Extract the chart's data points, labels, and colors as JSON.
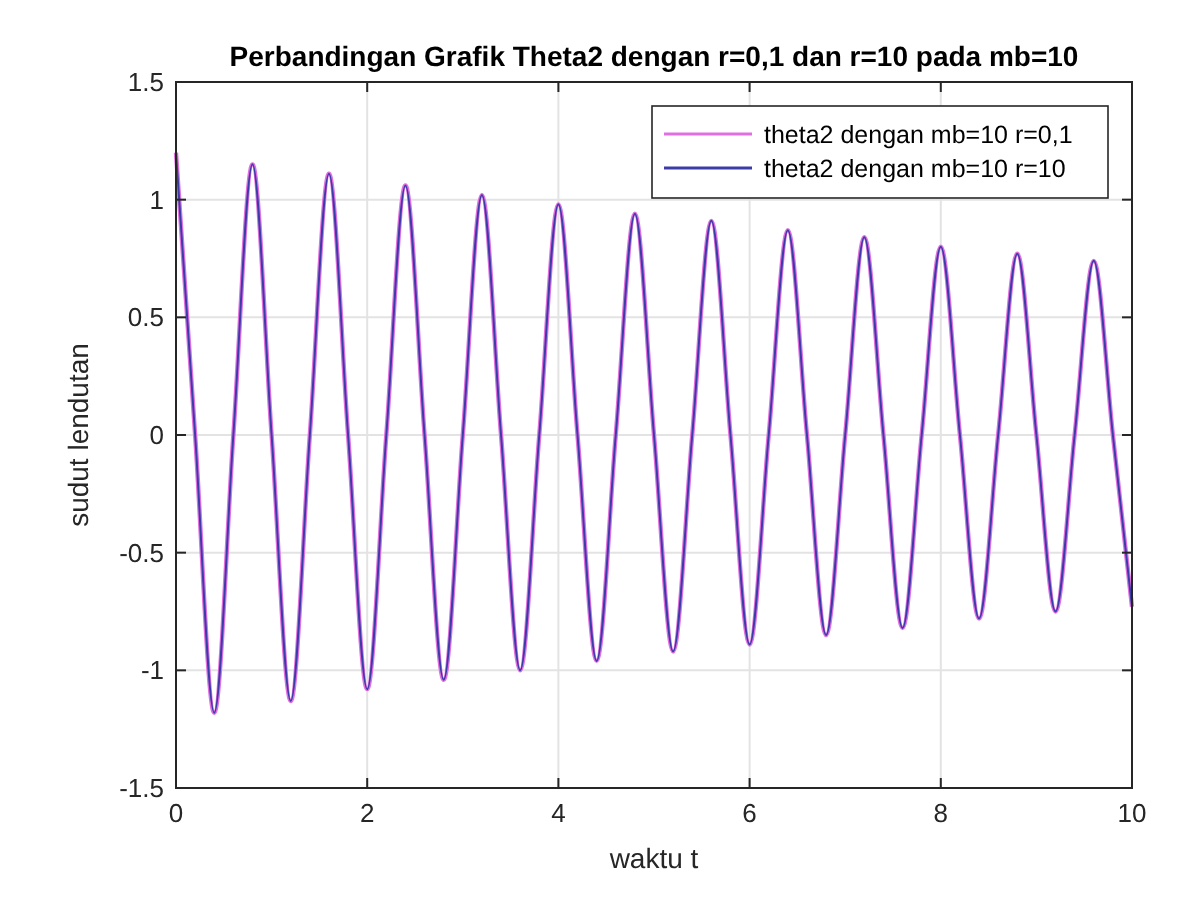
{
  "chart_data": {
    "type": "line",
    "title": "Perbandingan Grafik Theta2 dengan r=0,1 dan r=10 pada mb=10",
    "xlabel": "waktu t",
    "ylabel": "sudut lendutan",
    "x": [
      0,
      0.2,
      0.4,
      0.6,
      0.8,
      1,
      1.2,
      1.4,
      1.6,
      1.8,
      2,
      2.2,
      2.4,
      2.6,
      2.8,
      3,
      3.2,
      3.4,
      3.6,
      3.8,
      4,
      4.2,
      4.4,
      4.6,
      4.8,
      5,
      5.2,
      5.4,
      5.6,
      5.8,
      6,
      6.2,
      6.4,
      6.6,
      6.8,
      7,
      7.2,
      7.4,
      7.6,
      7.8,
      8,
      8.2,
      8.4,
      8.6,
      8.8,
      9,
      9.2,
      9.4,
      9.6,
      9.8,
      10
    ],
    "series": [
      {
        "name": "theta2 dengan mb=10 r=0,1",
        "color": "#e070e0",
        "values": [
          1.2,
          0,
          -1.18,
          0,
          1.15,
          0,
          -1.13,
          0,
          1.11,
          0,
          -1.08,
          0,
          1.06,
          0,
          -1.04,
          0,
          1.02,
          0,
          -1.0,
          0,
          0.98,
          0,
          -0.96,
          0,
          0.94,
          0,
          -0.92,
          0,
          0.91,
          0,
          -0.89,
          0,
          0.87,
          0,
          -0.85,
          0,
          0.84,
          0,
          -0.82,
          0,
          0.8,
          0,
          -0.78,
          0,
          0.77,
          0,
          -0.75,
          0,
          0.74,
          0,
          -0.73
        ]
      },
      {
        "name": "theta2 dengan mb=10 r=10",
        "color": "#3c3ca8",
        "values": [
          1.2,
          0,
          -1.18,
          0,
          1.15,
          0,
          -1.13,
          0,
          1.11,
          0,
          -1.08,
          0,
          1.06,
          0,
          -1.04,
          0,
          1.02,
          0,
          -1.0,
          0,
          0.98,
          0,
          -0.96,
          0,
          0.94,
          0,
          -0.92,
          0,
          0.91,
          0,
          -0.89,
          0,
          0.87,
          0,
          -0.85,
          0,
          0.84,
          0,
          -0.82,
          0,
          0.8,
          0,
          -0.78,
          0,
          0.77,
          0,
          -0.75,
          0,
          0.74,
          0,
          -0.73
        ]
      }
    ],
    "xlim": [
      0,
      10
    ],
    "xticks": [
      0,
      2,
      4,
      6,
      8,
      10
    ],
    "ylim": [
      -1.5,
      1.5
    ],
    "yticks": [
      -1.5,
      -1,
      -0.5,
      0,
      0.5,
      1,
      1.5
    ],
    "grid": true,
    "legend": "top right",
    "marker": "none",
    "line_style": "solid"
  }
}
